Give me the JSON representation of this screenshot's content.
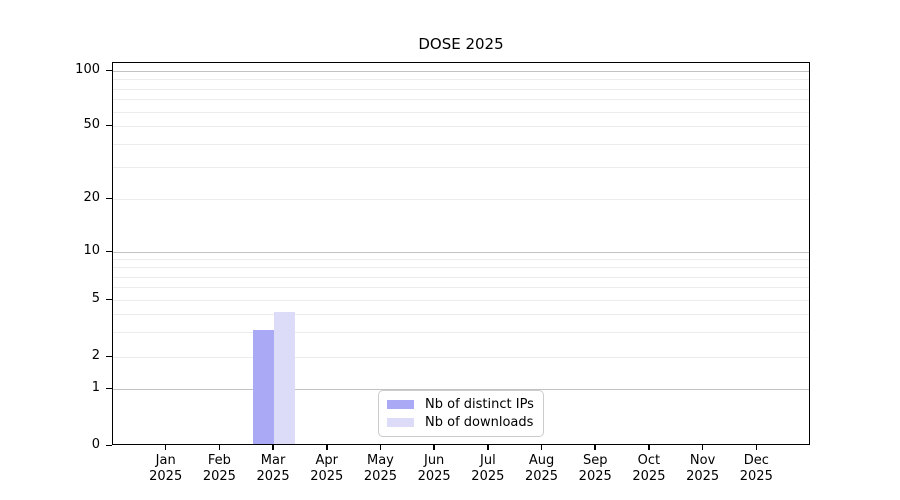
{
  "chart_data": {
    "type": "bar",
    "title": "DOSE 2025",
    "xlabel": "",
    "ylabel": "",
    "year": "2025",
    "categories": [
      "Jan",
      "Feb",
      "Mar",
      "Apr",
      "May",
      "Jun",
      "Jul",
      "Aug",
      "Sep",
      "Oct",
      "Nov",
      "Dec"
    ],
    "series": [
      {
        "name": "Nb of distinct IPs",
        "color": "#a9a9f5",
        "values": [
          0,
          0,
          3,
          0,
          0,
          0,
          0,
          0,
          0,
          0,
          0,
          0
        ]
      },
      {
        "name": "Nb of downloads",
        "color": "#dcdcf8",
        "values": [
          0,
          0,
          4,
          0,
          0,
          0,
          0,
          0,
          0,
          0,
          0,
          0
        ]
      }
    ],
    "y_axis": {
      "scale": "log-like with zero baseline",
      "labeled_ticks": [
        0,
        1,
        2,
        5,
        10,
        20,
        50,
        100
      ],
      "major_gridlines": [
        1,
        10,
        100
      ],
      "minor_gridlines": [
        2,
        3,
        4,
        5,
        6,
        7,
        8,
        9,
        20,
        30,
        40,
        50,
        60,
        70,
        80,
        90
      ],
      "ylim": [
        0,
        100
      ]
    },
    "grid": "both",
    "legend_position": "inside-bottom-center"
  },
  "legend": {
    "items": [
      {
        "label": "Nb of distinct IPs",
        "color": "#a9a9f5"
      },
      {
        "label": "Nb of downloads",
        "color": "#dcdcf8"
      }
    ]
  },
  "colors": {
    "background": "#ffffff",
    "spine": "#000000",
    "text": "#000000",
    "grid_major": "#c2c2c2",
    "grid_minor": "#ececec",
    "legend_border": "#cccccc"
  }
}
